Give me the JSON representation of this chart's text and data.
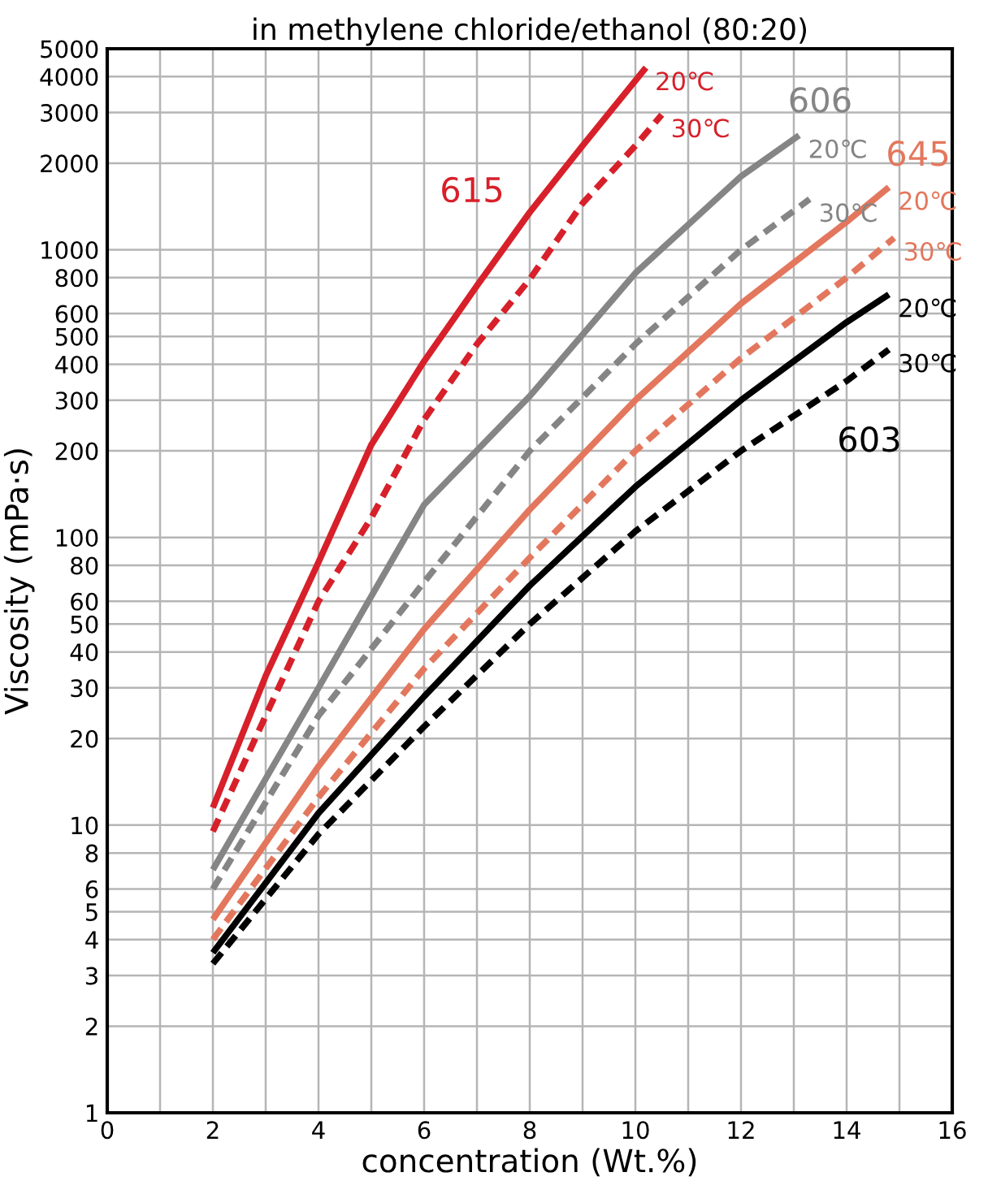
{
  "chart_data": {
    "type": "line",
    "title": "in methylene chloride/ethanol (80:20)",
    "xlabel": "concentration (Wt.%)",
    "ylabel": "Viscosity (mPa·s)",
    "log": "y",
    "grid": true,
    "legend": false,
    "xlim": [
      0,
      16
    ],
    "ylim": [
      1,
      5000
    ],
    "xticks": [
      0,
      {
        "value": 1,
        "label": null
      },
      2,
      {
        "value": 3,
        "label": null
      },
      4,
      {
        "value": 5,
        "label": null
      },
      6,
      {
        "value": 7,
        "label": null
      },
      8,
      {
        "value": 9,
        "label": null
      },
      10,
      {
        "value": 11,
        "label": null
      },
      12,
      {
        "value": 13,
        "label": null
      },
      14,
      {
        "value": 15,
        "label": null
      },
      16
    ],
    "yticks": [
      1,
      2,
      3,
      4,
      5,
      6,
      8,
      10,
      20,
      30,
      40,
      50,
      60,
      80,
      100,
      200,
      300,
      400,
      500,
      600,
      800,
      1000,
      2000,
      3000,
      4000,
      5000
    ],
    "series": [
      {
        "name": "20℃",
        "color": "#d7202a",
        "line_style": "solid",
        "x": [
          2,
          3,
          4,
          5,
          6,
          7,
          8,
          9,
          10.2
        ],
        "values": [
          11.5,
          33,
          82,
          210,
          410,
          750,
          1350,
          2300,
          4300
        ]
      },
      {
        "name": "30℃",
        "color": "#d7202a",
        "line_style": "dashed",
        "x": [
          2,
          3,
          4,
          5,
          6,
          7,
          8,
          9,
          10,
          10.5
        ],
        "values": [
          9.5,
          24,
          60,
          117,
          257,
          470,
          790,
          1450,
          2300,
          2950
        ]
      },
      {
        "name": "20℃",
        "color": "#858585",
        "line_style": "solid",
        "x": [
          2,
          4,
          6,
          8,
          10,
          12,
          13.1
        ],
        "values": [
          7,
          30,
          130,
          310,
          830,
          1800,
          2500
        ]
      },
      {
        "name": "30℃",
        "color": "#858585",
        "line_style": "dashed",
        "x": [
          2,
          4,
          6,
          8,
          10,
          12,
          13.3
        ],
        "values": [
          6,
          24,
          70,
          200,
          470,
          1000,
          1500
        ]
      },
      {
        "name": "20℃",
        "color": "#e3775d",
        "line_style": "solid",
        "x": [
          2,
          4,
          6,
          8,
          10,
          12,
          14,
          14.8
        ],
        "values": [
          4.7,
          16,
          48,
          125,
          300,
          650,
          1250,
          1650
        ]
      },
      {
        "name": "30℃",
        "color": "#e3775d",
        "line_style": "dashed",
        "x": [
          2,
          4,
          6,
          8,
          10,
          12,
          14,
          14.9
        ],
        "values": [
          4,
          12.5,
          35,
          85,
          200,
          420,
          800,
          1100
        ]
      },
      {
        "name": "20℃",
        "color": "#000000",
        "line_style": "solid",
        "x": [
          2,
          4,
          6,
          8,
          10,
          12,
          14,
          14.8
        ],
        "values": [
          3.6,
          11,
          28,
          68,
          150,
          300,
          560,
          700
        ]
      },
      {
        "name": "30℃",
        "color": "#000000",
        "line_style": "dashed",
        "x": [
          2,
          4,
          6,
          8,
          10,
          12,
          14,
          14.8
        ],
        "values": [
          3.3,
          9.3,
          22,
          50,
          105,
          200,
          350,
          450
        ]
      }
    ],
    "annotations": [
      "615",
      "606",
      "645",
      "603"
    ]
  }
}
